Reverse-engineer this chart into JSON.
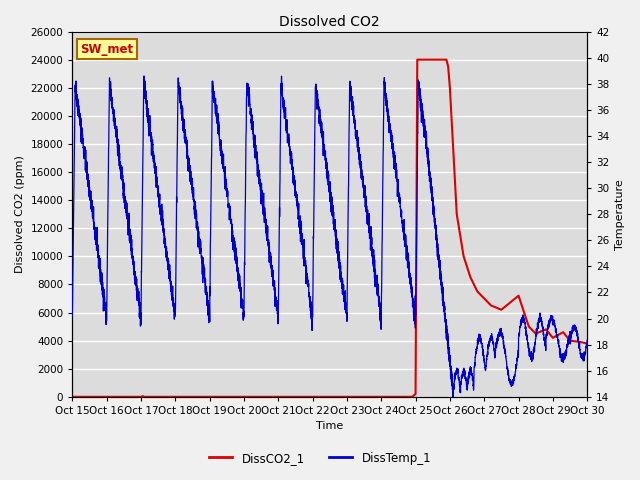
{
  "title": "Dissolved CO2",
  "xlabel": "Time",
  "ylabel_left": "Dissolved CO2 (ppm)",
  "ylabel_right": "Temperature",
  "ylim_left": [
    0,
    26000
  ],
  "ylim_right": [
    14,
    42
  ],
  "xlim": [
    15,
    30
  ],
  "xtick_positions": [
    15,
    16,
    17,
    18,
    19,
    20,
    21,
    22,
    23,
    24,
    25,
    26,
    27,
    28,
    29,
    30
  ],
  "xtick_labels": [
    "Oct 15",
    "Oct 16",
    "Oct 17",
    "Oct 18",
    "Oct 19",
    "Oct 20",
    "Oct 21",
    "Oct 22",
    "Oct 23",
    "Oct 24",
    "Oct 25",
    "Oct 26",
    "Oct 27",
    "Oct 28",
    "Oct 29",
    "Oct 30"
  ],
  "yticks_left": [
    0,
    2000,
    4000,
    6000,
    8000,
    10000,
    12000,
    14000,
    16000,
    18000,
    20000,
    22000,
    24000,
    26000
  ],
  "yticks_right": [
    14,
    16,
    18,
    20,
    22,
    24,
    26,
    28,
    30,
    32,
    34,
    36,
    38,
    40,
    42
  ],
  "fig_bg_color": "#f0f0f0",
  "plot_bg_color": "#dcdcdc",
  "grid_color": "#ffffff",
  "label_box_text": "SW_met",
  "label_box_bg": "#ffff99",
  "label_box_border": "#aa6600",
  "legend_labels": [
    "DissCO2_1",
    "DissTemp_1"
  ],
  "co2_color": "#dd0000",
  "temp_color": "#0000cc",
  "title_fontsize": 10,
  "axis_label_fontsize": 8,
  "tick_fontsize": 7.5,
  "legend_fontsize": 8.5
}
